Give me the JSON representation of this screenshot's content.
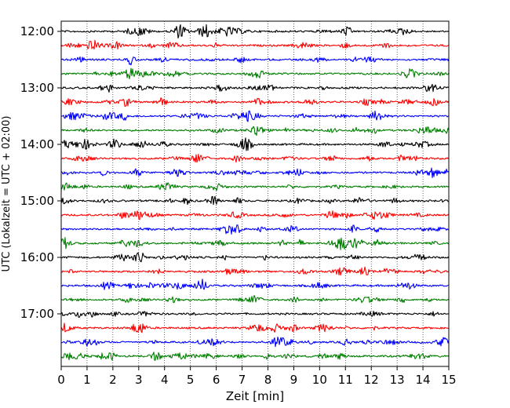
{
  "chart_data": {
    "type": "line",
    "title": "",
    "xlabel": "Zeit  [min]",
    "ylabel": "UTC (Lokalzeit = UTC + 02:00)",
    "xlim": [
      0,
      15
    ],
    "x_ticks": [
      "0",
      "1",
      "2",
      "3",
      "4",
      "5",
      "6",
      "7",
      "8",
      "9",
      "10",
      "11",
      "12",
      "13",
      "14",
      "15"
    ],
    "y_tick_labels": [
      "12:00",
      "13:00",
      "14:00",
      "15:00",
      "16:00",
      "17:00"
    ],
    "grid": "vertical dotted lines at each minute",
    "legend": "none",
    "trace_colors": [
      "#000000",
      "#ff0000",
      "#0000ff",
      "#007f00"
    ],
    "trace_interval_minutes": 15,
    "traces": [
      {
        "start": "12:00",
        "color": "#000000"
      },
      {
        "start": "12:15",
        "color": "#ff0000"
      },
      {
        "start": "12:30",
        "color": "#0000ff"
      },
      {
        "start": "12:45",
        "color": "#007f00"
      },
      {
        "start": "13:00",
        "color": "#000000"
      },
      {
        "start": "13:15",
        "color": "#ff0000"
      },
      {
        "start": "13:30",
        "color": "#0000ff"
      },
      {
        "start": "13:45",
        "color": "#007f00"
      },
      {
        "start": "14:00",
        "color": "#000000"
      },
      {
        "start": "14:15",
        "color": "#ff0000"
      },
      {
        "start": "14:30",
        "color": "#0000ff"
      },
      {
        "start": "14:45",
        "color": "#007f00"
      },
      {
        "start": "15:00",
        "color": "#000000"
      },
      {
        "start": "15:15",
        "color": "#ff0000"
      },
      {
        "start": "15:30",
        "color": "#0000ff"
      },
      {
        "start": "15:45",
        "color": "#007f00"
      },
      {
        "start": "16:00",
        "color": "#000000"
      },
      {
        "start": "16:15",
        "color": "#ff0000"
      },
      {
        "start": "16:30",
        "color": "#0000ff"
      },
      {
        "start": "16:45",
        "color": "#007f00"
      },
      {
        "start": "17:00",
        "color": "#000000"
      },
      {
        "start": "17:15",
        "color": "#ff0000"
      },
      {
        "start": "17:30",
        "color": "#0000ff"
      },
      {
        "start": "17:45",
        "color": "#007f00"
      }
    ]
  }
}
